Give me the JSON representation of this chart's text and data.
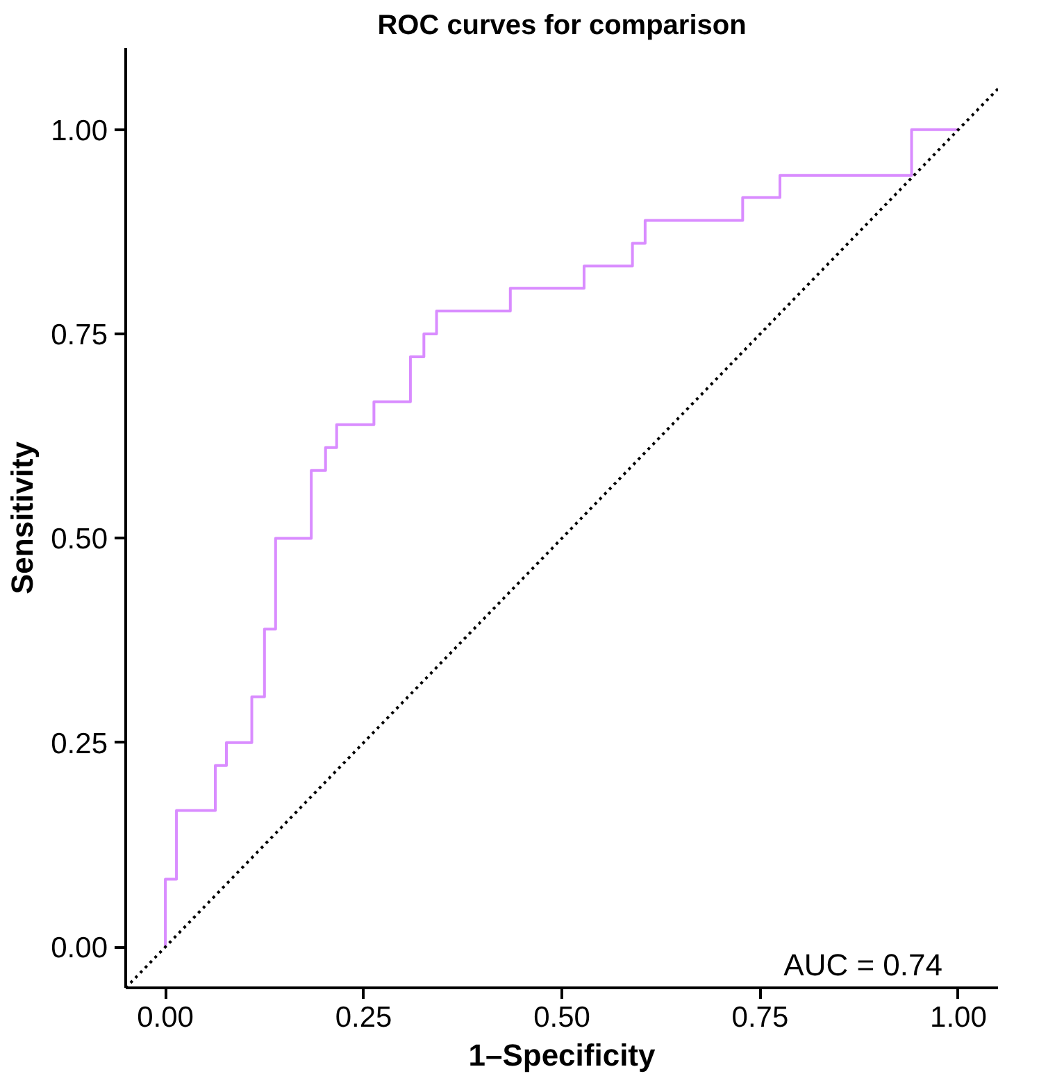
{
  "chart_data": {
    "type": "step",
    "title": "ROC curves for comparison",
    "xlabel": "1–Specificity",
    "ylabel": "Sensitivity",
    "xlim": [
      -0.05,
      1.05
    ],
    "ylim": [
      -0.05,
      1.1
    ],
    "xticks": [
      {
        "value": 0,
        "label": "0.00"
      },
      {
        "value": 0.25,
        "label": "0.25"
      },
      {
        "value": 0.5,
        "label": "0.50"
      },
      {
        "value": 0.75,
        "label": "0.75"
      },
      {
        "value": 1,
        "label": "1.00"
      }
    ],
    "yticks": [
      {
        "value": 0,
        "label": "0.00"
      },
      {
        "value": 0.25,
        "label": "0.25"
      },
      {
        "value": 0.5,
        "label": "0.50"
      },
      {
        "value": 0.75,
        "label": "0.75"
      },
      {
        "value": 1,
        "label": "1.00"
      }
    ],
    "grid": false,
    "series": [
      {
        "color": "#d98cff",
        "x": [
          0,
          0,
          0.014,
          0.063,
          0.077,
          0.109,
          0.125,
          0.139,
          0.184,
          0.202,
          0.216,
          0.263,
          0.309,
          0.326,
          0.342,
          0.435,
          0.528,
          0.589,
          0.605,
          0.728,
          0.775,
          0.941,
          1.0
        ],
        "values": [
          0,
          0.083,
          0.167,
          0.222,
          0.25,
          0.306,
          0.389,
          0.5,
          0.583,
          0.611,
          0.639,
          0.667,
          0.722,
          0.75,
          0.778,
          0.806,
          0.833,
          0.861,
          0.889,
          0.917,
          0.944,
          1.0,
          1.0
        ]
      },
      {
        "type": "line",
        "color": "#000000",
        "line_style": "dotted",
        "x": [
          -0.05,
          1.05
        ],
        "values": [
          -0.05,
          1.05
        ]
      }
    ],
    "annotations": [
      "AUC = 0.74"
    ]
  }
}
